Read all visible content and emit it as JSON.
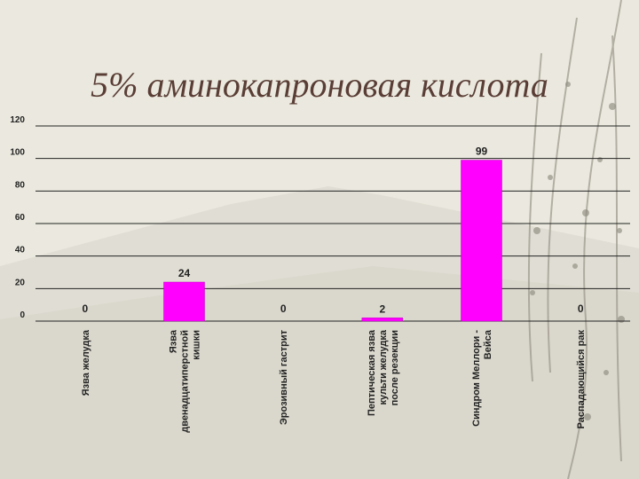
{
  "slide": {
    "title": "5% аминокапроновая кислота"
  },
  "colors": {
    "background": "#ebe9df",
    "bar": "#ff00ff",
    "title": "#5a3e36"
  },
  "chart_data": {
    "type": "bar",
    "title": "",
    "xlabel": "",
    "ylabel": "",
    "ylim": [
      0,
      120
    ],
    "yticks": [
      0,
      20,
      40,
      60,
      80,
      100,
      120
    ],
    "grid": true,
    "legend": "none",
    "categories": [
      [
        "Язва желудка"
      ],
      [
        "Язва",
        "двенадцатиперстной",
        "кишки"
      ],
      [
        "Эрозивный гастрит"
      ],
      [
        "Пептическая язва",
        "культи желудка",
        "после резекции"
      ],
      [
        "Синдром Меллори -",
        "Вейса"
      ],
      [
        "Распадающийся рак"
      ]
    ],
    "values": [
      0,
      24,
      0,
      2,
      99,
      0
    ],
    "data_labels": [
      "0",
      "24",
      "0",
      "2",
      "99",
      "0"
    ]
  }
}
